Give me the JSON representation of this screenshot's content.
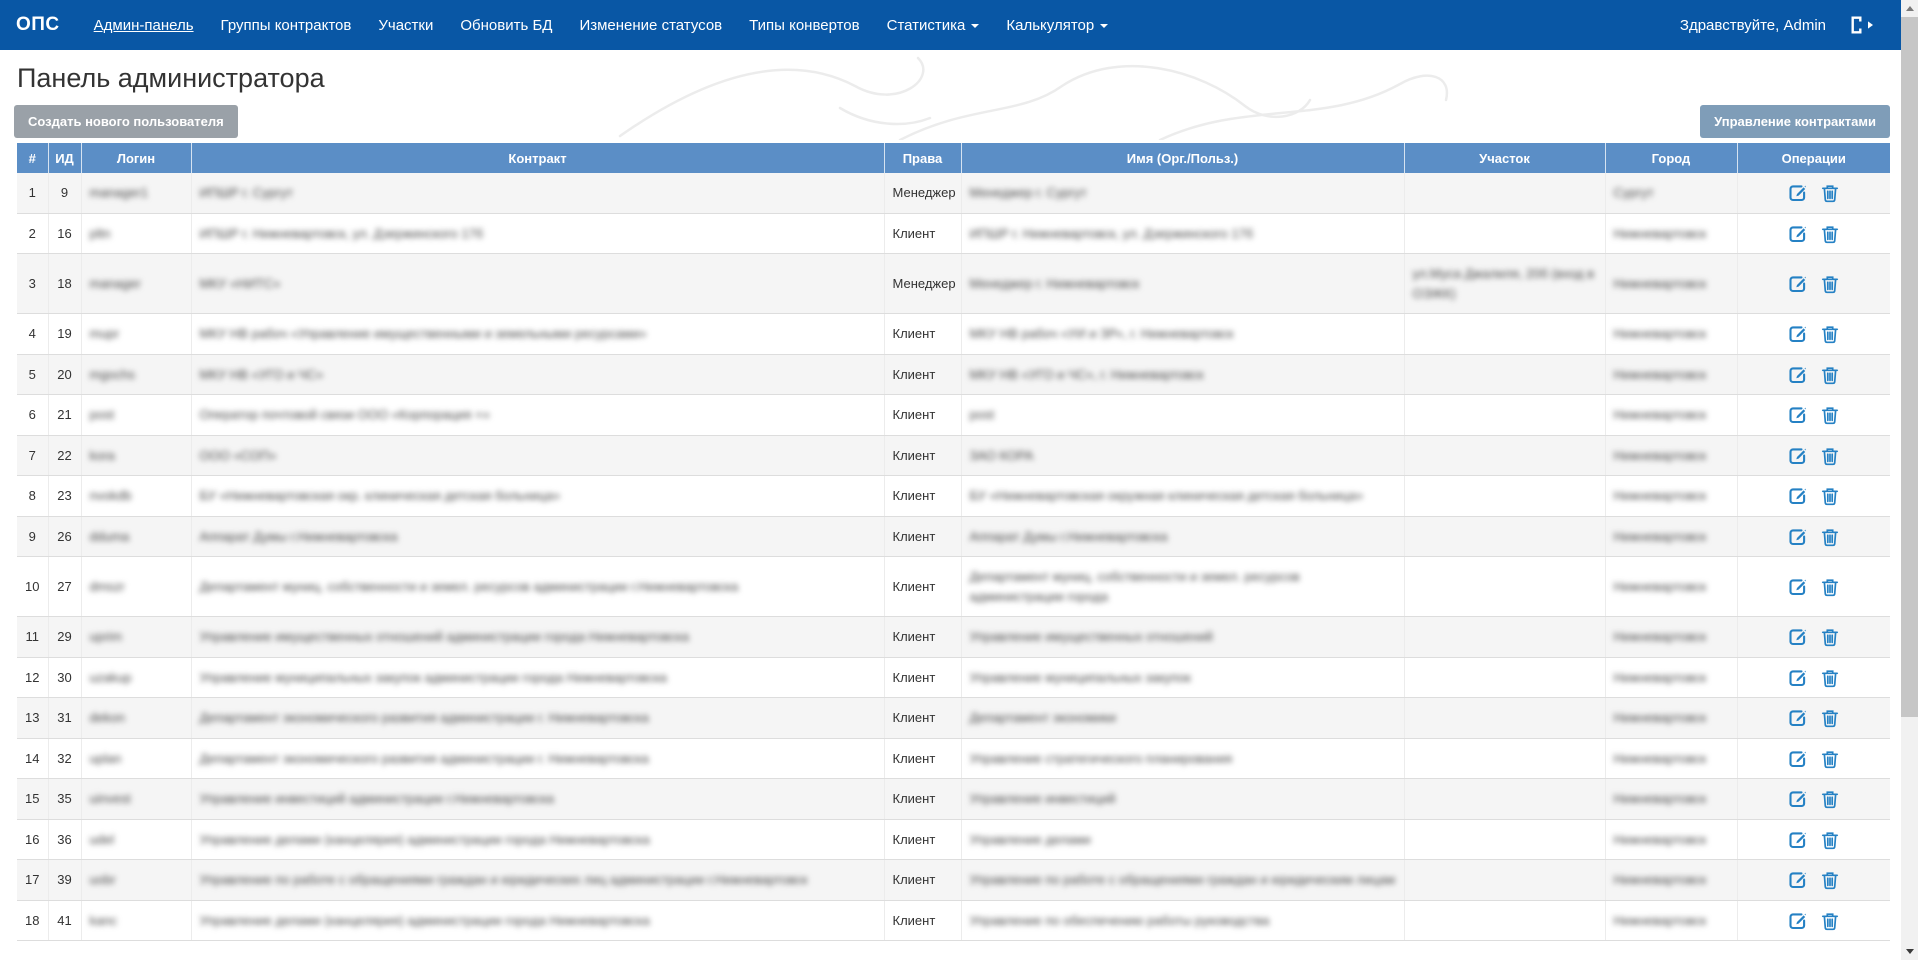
{
  "navbar": {
    "brand": "ОПС",
    "items": [
      {
        "label": "Админ-панель",
        "active": true,
        "dropdown": false
      },
      {
        "label": "Группы контрактов",
        "active": false,
        "dropdown": false
      },
      {
        "label": "Участки",
        "active": false,
        "dropdown": false
      },
      {
        "label": "Обновить БД",
        "active": false,
        "dropdown": false
      },
      {
        "label": "Изменение статусов",
        "active": false,
        "dropdown": false
      },
      {
        "label": "Типы конвертов",
        "active": false,
        "dropdown": false
      },
      {
        "label": "Статистика",
        "active": false,
        "dropdown": true
      },
      {
        "label": "Калькулятор",
        "active": false,
        "dropdown": true
      }
    ],
    "greeting": "Здравствуйте, Admin",
    "logout_icon": "sign-out-icon"
  },
  "page": {
    "title": "Панель администратора",
    "create_user_button": "Создать нового пользователя",
    "manage_contracts_button": "Управление контрактами"
  },
  "table": {
    "headers": [
      "#",
      "ИД",
      "Логин",
      "Контракт",
      "Права",
      "Имя (Орг./Польз.)",
      "Участок",
      "Город",
      "Операции"
    ],
    "operations_icons": [
      "edit-icon",
      "trash-icon"
    ],
    "privacy_blurred_columns": [
      "Логин",
      "Контракт",
      "Имя (Орг./Польз.)",
      "Участок",
      "Город"
    ],
    "rows": [
      {
        "num": "1",
        "id": "9",
        "login": "manager1",
        "contract": "ИПШР г. Сургут",
        "role": "Менеджер",
        "name": "Менеджер г. Сургут",
        "district": "",
        "city": "Сургут"
      },
      {
        "num": "2",
        "id": "16",
        "login": "pltn",
        "contract": "ИПШР г. Нижневартовск, ул. Дзержинского 17б",
        "role": "Клиент",
        "name": "ИПШР г. Нижневартовск, ул. Дзержинского 17б",
        "district": "",
        "city": "Нижневартовск"
      },
      {
        "num": "3",
        "id": "18",
        "login": "manager",
        "contract": "МКУ «НИТС»",
        "role": "Менеджер",
        "name": "Менеджер г. Нижневартовск",
        "district": "ул.Муса Джалиля, 20б (вход в ОЭЖК)",
        "city": "Нижневартовск"
      },
      {
        "num": "4",
        "id": "19",
        "login": "mupr",
        "contract": "МКУ НВ рабоч «Управление имущественными и земельными ресурсами»",
        "role": "Клиент",
        "name": "МКУ НВ рабоч «УИ и ЗР», г. Нижневартовск",
        "district": "",
        "city": "Нижневартовск"
      },
      {
        "num": "5",
        "id": "20",
        "login": "mgochs",
        "contract": "МКУ НВ «УГО и ЧС»",
        "role": "Клиент",
        "name": "МКУ НВ «УГО и ЧС», г. Нижневартовск",
        "district": "",
        "city": "Нижневартовск"
      },
      {
        "num": "6",
        "id": "21",
        "login": "post",
        "contract": "Оператор почтовой связи ООО «Корпорация +»",
        "role": "Клиент",
        "name": "post",
        "district": "",
        "city": "Нижневартовск"
      },
      {
        "num": "7",
        "id": "22",
        "login": "kora",
        "contract": "ООО «СОП»",
        "role": "Клиент",
        "name": "ЗАО КОРА",
        "district": "",
        "city": "Нижневартовск"
      },
      {
        "num": "8",
        "id": "23",
        "login": "nvokdb",
        "contract": "БУ «Нижневартовская окр. клиническая детская больница»",
        "role": "Клиент",
        "name": "БУ «Нижневартовская окружная клиническая детская больница»",
        "district": "",
        "city": "Нижневартовск"
      },
      {
        "num": "9",
        "id": "26",
        "login": "dduma",
        "contract": "Аппарат Думы г.Нижневартовска",
        "role": "Клиент",
        "name": "Аппарат Думы г.Нижневартовска",
        "district": "",
        "city": "Нижневартовск"
      },
      {
        "num": "10",
        "id": "27",
        "login": "dmszr",
        "contract": "Департамент муниц. собственности и земел. ресурсов администрации г.Нижневартовска",
        "role": "Клиент",
        "name": "Департамент муниц. собственности и земел. ресурсов администрации города",
        "district": "",
        "city": "Нижневартовск"
      },
      {
        "num": "11",
        "id": "29",
        "login": "uprim",
        "contract": "Управление имущественных отношений администрации города Нижневартовска",
        "role": "Клиент",
        "name": "Управление имущественных отношений",
        "district": "",
        "city": "Нижневартовск"
      },
      {
        "num": "12",
        "id": "30",
        "login": "uzakup",
        "contract": "Управление муниципальных закупок администрации города Нижневартовска",
        "role": "Клиент",
        "name": "Управление муниципальных закупок",
        "district": "",
        "city": "Нижневартовск"
      },
      {
        "num": "13",
        "id": "31",
        "login": "dekon",
        "contract": "Департамент экономического развития администрации г. Нижневартовска",
        "role": "Клиент",
        "name": "Департамент экономики",
        "district": "",
        "city": "Нижневартовск"
      },
      {
        "num": "14",
        "id": "32",
        "login": "uplan",
        "contract": "Департамент экономического развития администрации г. Нижневартовска",
        "role": "Клиент",
        "name": "Управление стратегического планирования",
        "district": "",
        "city": "Нижневартовск"
      },
      {
        "num": "15",
        "id": "35",
        "login": "uinvest",
        "contract": "Управление инвестиций администрации г.Нижневартовска",
        "role": "Клиент",
        "name": "Управление инвестиций",
        "district": "",
        "city": "Нижневартовск"
      },
      {
        "num": "16",
        "id": "36",
        "login": "udel",
        "contract": "Управление делами (канцелярия) администрации города Нижневартовска",
        "role": "Клиент",
        "name": "Управление делами",
        "district": "",
        "city": "Нижневартовск"
      },
      {
        "num": "17",
        "id": "39",
        "login": "uobr",
        "contract": "Управление по работе с обращениями граждан и юридических лиц администрации г.Нижневартовск",
        "role": "Клиент",
        "name": "Управление по работе с обращениями граждан и юридическим лицам",
        "district": "",
        "city": "Нижневартовск"
      },
      {
        "num": "18",
        "id": "41",
        "login": "kanc",
        "contract": "Управление делами (канцелярия) администрации города Нижневартовска",
        "role": "Клиент",
        "name": "Управление по обеспечению работы руководства",
        "district": "",
        "city": "Нижневартовск"
      }
    ]
  },
  "colors": {
    "navbar_bg": "#0957a5",
    "table_header_bg": "#5b8ec6",
    "row_stripe": "#f5f5f5",
    "icon_blue": "#2581c4",
    "create_button_bg": "#9aa1a8",
    "manage_button_bg": "#7f9db8"
  }
}
